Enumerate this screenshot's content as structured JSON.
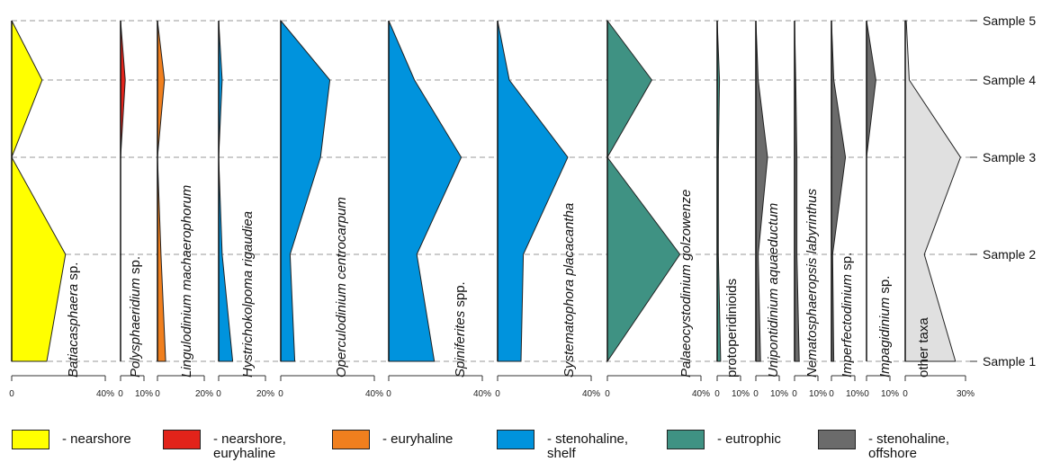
{
  "chart_data": {
    "type": "area",
    "orientation": "stratigraphic",
    "samples": [
      "Sample 5",
      "Sample 4",
      "Sample 3",
      "Sample 2",
      "Sample 1"
    ],
    "grid": "dashed horizontal at samples",
    "taxa": [
      {
        "name": "Batiacasphaera",
        "suffix": " sp.",
        "italic": true,
        "group": "nearshore",
        "xlim": [
          0,
          40
        ],
        "ticks": [
          "0",
          "40%"
        ],
        "values": [
          0,
          13,
          0,
          23,
          15
        ]
      },
      {
        "name": "Polysphaeridium",
        "suffix": " sp.",
        "italic": true,
        "group": "nearshore_euryhaline",
        "xlim": [
          0,
          10
        ],
        "ticks": [
          "0",
          "10%"
        ],
        "values": [
          0,
          2,
          0,
          0,
          0
        ]
      },
      {
        "name": "Lingulodinium machaerophorum",
        "suffix": "",
        "italic": true,
        "group": "euryhaline",
        "xlim": [
          0,
          20
        ],
        "ticks": [
          "0",
          "20%"
        ],
        "values": [
          0,
          3,
          0,
          1.5,
          3.5
        ]
      },
      {
        "name": "Hystrichokolpoma rigaudiea",
        "suffix": "",
        "italic": true,
        "group": "stenohaline_shelf",
        "xlim": [
          0,
          20
        ],
        "ticks": [
          "0",
          "20%"
        ],
        "values": [
          0,
          1.5,
          0,
          1.5,
          6
        ]
      },
      {
        "name": "Operculodinium centrocarpum",
        "suffix": "",
        "italic": true,
        "group": "stenohaline_shelf",
        "xlim": [
          0,
          40
        ],
        "ticks": [
          "0",
          "40%"
        ],
        "values": [
          0,
          21,
          17,
          4,
          6
        ]
      },
      {
        "name": "Spiniferites",
        "suffix": " spp.",
        "italic": true,
        "group": "stenohaline_shelf",
        "xlim": [
          0,
          40
        ],
        "ticks": [
          "0",
          "40%"
        ],
        "values": [
          0,
          11,
          31,
          12,
          19.5
        ]
      },
      {
        "name": "Systematophora placacantha",
        "suffix": "",
        "italic": true,
        "group": "stenohaline_shelf",
        "xlim": [
          0,
          40
        ],
        "ticks": [
          "0",
          "40%"
        ],
        "values": [
          0,
          5,
          30,
          11,
          10
        ]
      },
      {
        "name": "Palaeocystodinium golzowenze",
        "suffix": "",
        "italic": true,
        "group": "eutrophic",
        "xlim": [
          0,
          40
        ],
        "ticks": [
          "0",
          "40%"
        ],
        "values": [
          0,
          19,
          0,
          31,
          0
        ]
      },
      {
        "name": "protoperidinioids",
        "suffix": "",
        "italic": false,
        "group": "eutrophic",
        "xlim": [
          0,
          10
        ],
        "ticks": [
          "0",
          "10%"
        ],
        "values": [
          0,
          1,
          0.5,
          0.5,
          1.5
        ]
      },
      {
        "name": "Unipontidinium aquaeductum",
        "suffix": "",
        "italic": true,
        "group": "stenohaline_offshore",
        "xlim": [
          0,
          10
        ],
        "ticks": [
          "0",
          "10%"
        ],
        "values": [
          0,
          1,
          5,
          1,
          2
        ]
      },
      {
        "name": "Nematosphaeropsis labyrinthus",
        "suffix": "",
        "italic": true,
        "group": "stenohaline_offshore",
        "xlim": [
          0,
          10
        ],
        "ticks": [
          "0",
          "10%"
        ],
        "values": [
          0,
          0.5,
          1,
          1,
          2
        ]
      },
      {
        "name": "Imperfectodinium",
        "suffix": " sp.",
        "italic": true,
        "group": "stenohaline_offshore",
        "xlim": [
          0,
          10
        ],
        "ticks": [
          "0",
          "10%"
        ],
        "values": [
          0,
          1,
          6,
          0.5,
          1
        ]
      },
      {
        "name": "Impagidinium",
        "suffix": " sp.",
        "italic": true,
        "group": "stenohaline_offshore",
        "xlim": [
          0,
          10
        ],
        "ticks": [
          "0",
          "10%"
        ],
        "values": [
          0,
          4,
          0,
          0,
          0
        ]
      },
      {
        "name": "other taxa",
        "suffix": "",
        "italic": false,
        "group": "other",
        "xlim": [
          0,
          30
        ],
        "ticks": [
          "0",
          "30%"
        ],
        "values": [
          0.5,
          2,
          27.5,
          9.5,
          25
        ]
      }
    ],
    "groups": {
      "nearshore": "#ffff00",
      "nearshore_euryhaline": "#e2231a",
      "euryhaline": "#f07f1e",
      "stenohaline_shelf": "#0093dd",
      "eutrophic": "#3f9283",
      "stenohaline_offshore": "#6b6b6b",
      "other": "#e0e0e0"
    }
  },
  "legend": [
    {
      "label": "- nearshore",
      "color": "#ffff00"
    },
    {
      "label": "- nearshore,\neuryhaline",
      "color": "#e2231a"
    },
    {
      "label": "- euryhaline",
      "color": "#f07f1e"
    },
    {
      "label": "- stenohaline,\nshelf",
      "color": "#0093dd"
    },
    {
      "label": "- eutrophic",
      "color": "#3f9283"
    },
    {
      "label": "- stenohaline,\noffshore",
      "color": "#6b6b6b"
    }
  ]
}
